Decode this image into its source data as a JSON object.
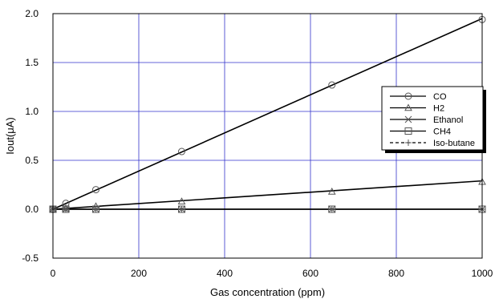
{
  "chart_data": {
    "type": "line",
    "title": "",
    "xlabel": "Gas concentration (ppm)",
    "ylabel": "Iout(μA)",
    "xlim": [
      0,
      1000
    ],
    "ylim": [
      -0.5,
      2.0
    ],
    "xticks": [
      0,
      200,
      400,
      600,
      800,
      1000
    ],
    "yticks": [
      -0.5,
      0.0,
      0.5,
      1.0,
      1.5,
      2.0
    ],
    "xtick_labels": [
      "0",
      "200",
      "400",
      "600",
      "800",
      "1000"
    ],
    "ytick_labels": [
      "-0.5",
      "0.0",
      "0.5",
      "1.0",
      "1.5",
      "2.0"
    ],
    "grid": true,
    "grid_color": "#3333cc",
    "legend_position": "right",
    "series": [
      {
        "name": "CO",
        "marker": "circle",
        "dash": false,
        "fit": [
          [
            0,
            0.0
          ],
          [
            1000,
            1.95
          ]
        ],
        "x": [
          0,
          30,
          100,
          300,
          650,
          1000
        ],
        "y": [
          0.0,
          0.06,
          0.2,
          0.59,
          1.27,
          1.94
        ]
      },
      {
        "name": "H2",
        "marker": "triangle",
        "dash": false,
        "fit": [
          [
            0,
            0.0
          ],
          [
            1000,
            0.29
          ]
        ],
        "x": [
          0,
          30,
          100,
          300,
          650,
          1000
        ],
        "y": [
          0.0,
          0.01,
          0.03,
          0.08,
          0.18,
          0.28
        ]
      },
      {
        "name": "Ethanol",
        "marker": "x",
        "dash": false,
        "fit": [
          [
            0,
            0.0
          ],
          [
            1000,
            0.0
          ]
        ],
        "x": [
          0,
          30,
          100,
          300,
          650,
          1000
        ],
        "y": [
          0.0,
          0.0,
          0.0,
          0.0,
          0.0,
          0.0
        ]
      },
      {
        "name": "CH4",
        "marker": "square",
        "dash": false,
        "fit": [
          [
            0,
            0.0
          ],
          [
            1000,
            0.0
          ]
        ],
        "x": [
          0,
          30,
          100,
          300,
          650,
          1000
        ],
        "y": [
          0.0,
          0.0,
          0.0,
          0.0,
          0.0,
          0.0
        ]
      },
      {
        "name": "Iso-butane",
        "marker": "plus",
        "dash": true,
        "fit": [
          [
            0,
            0.0
          ],
          [
            1000,
            0.0
          ]
        ],
        "x": [
          0,
          30,
          100,
          300,
          650,
          1000
        ],
        "y": [
          0.0,
          0.0,
          0.0,
          0.0,
          0.0,
          0.0
        ]
      }
    ]
  }
}
